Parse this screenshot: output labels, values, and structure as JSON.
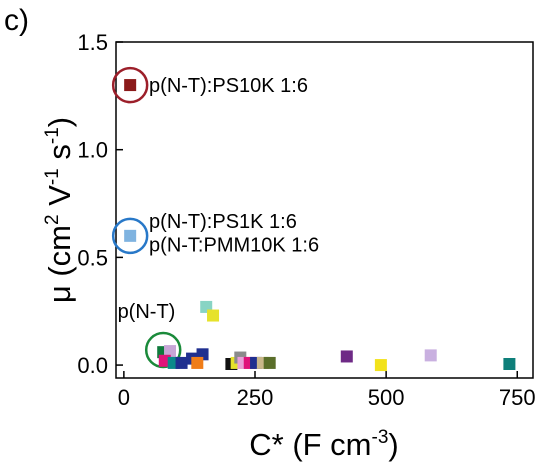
{
  "panel_label": "c)",
  "chart_data": {
    "type": "scatter",
    "xlabel_main": "C* (F cm",
    "xlabel_sup": "-3",
    "xlabel_end": ")",
    "ylabel_parts": [
      "μ (cm",
      "2",
      " V",
      "-1",
      " s",
      "-1",
      ")"
    ],
    "xlim": [
      -15,
      780
    ],
    "ylim": [
      -0.06,
      1.5
    ],
    "xticks": [
      0,
      250,
      500,
      750
    ],
    "xtick_labels": [
      "0",
      "250",
      "500",
      "750"
    ],
    "yticks": [
      0.0,
      0.5,
      1.0,
      1.5
    ],
    "ytick_labels": [
      "0.0",
      "0.5",
      "1.0",
      "1.5"
    ],
    "grid": false,
    "points": [
      {
        "x": 12,
        "y": 1.3,
        "color": "#8b1a1a"
      },
      {
        "x": 12,
        "y": 0.6,
        "color": "#7fb3e0"
      },
      {
        "x": 157,
        "y": 0.27,
        "color": "#88d4c4"
      },
      {
        "x": 170,
        "y": 0.23,
        "color": "#e6e22b"
      },
      {
        "x": 75,
        "y": 0.06,
        "color": "#0f7a3c"
      },
      {
        "x": 88,
        "y": 0.065,
        "color": "#c7a6d6"
      },
      {
        "x": 78,
        "y": 0.02,
        "color": "#e0127a"
      },
      {
        "x": 95,
        "y": 0.01,
        "color": "#0a8a8a"
      },
      {
        "x": 110,
        "y": 0.01,
        "color": "#1f2f8f"
      },
      {
        "x": 130,
        "y": 0.03,
        "color": "#1f2f8f"
      },
      {
        "x": 150,
        "y": 0.05,
        "color": "#1f2f8f"
      },
      {
        "x": 140,
        "y": 0.01,
        "color": "#f07d19"
      },
      {
        "x": 205,
        "y": 0.005,
        "color": "#111111"
      },
      {
        "x": 215,
        "y": 0.01,
        "color": "#e6e22b"
      },
      {
        "x": 222,
        "y": 0.035,
        "color": "#8b8b8b"
      },
      {
        "x": 228,
        "y": 0.01,
        "color": "#e8a0d8"
      },
      {
        "x": 240,
        "y": 0.01,
        "color": "#e0127a"
      },
      {
        "x": 252,
        "y": 0.01,
        "color": "#1f2f8f"
      },
      {
        "x": 265,
        "y": 0.01,
        "color": "#c9b78a"
      },
      {
        "x": 278,
        "y": 0.01,
        "color": "#5a6e2a"
      },
      {
        "x": 425,
        "y": 0.04,
        "color": "#6e2a86"
      },
      {
        "x": 490,
        "y": 0.0,
        "color": "#f2e21b"
      },
      {
        "x": 585,
        "y": 0.045,
        "color": "#c9b0e0"
      },
      {
        "x": 735,
        "y": 0.005,
        "color": "#0e7f7a"
      }
    ],
    "circles": [
      {
        "x": 12,
        "y": 1.3,
        "color": "#9c1f2a"
      },
      {
        "x": 12,
        "y": 0.6,
        "color": "#2878c8"
      },
      {
        "x": 75,
        "y": 0.07,
        "color": "#1a8a3a"
      }
    ],
    "annotations": [
      {
        "text": "p(N-T):PS10K 1:6",
        "x": 48,
        "y": 1.3
      },
      {
        "text": "p(N-T):PS1K 1:6",
        "x": 48,
        "y": 0.67
      },
      {
        "text": "p(N-T:PMM10K 1:6",
        "x": 48,
        "y": 0.56
      },
      {
        "text": "p(N-T)",
        "x": -12,
        "y": 0.25
      }
    ]
  }
}
